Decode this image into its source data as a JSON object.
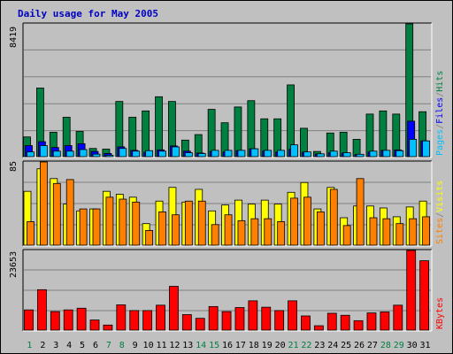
{
  "chart_data": {
    "type": "bar",
    "title": "Daily usage for May 2005",
    "categories": [
      "1",
      "2",
      "3",
      "4",
      "5",
      "6",
      "7",
      "8",
      "9",
      "10",
      "11",
      "12",
      "13",
      "14",
      "15",
      "16",
      "17",
      "18",
      "19",
      "20",
      "21",
      "22",
      "23",
      "24",
      "25",
      "26",
      "27",
      "28",
      "29",
      "30",
      "31"
    ],
    "weekend_days": [
      "1",
      "7",
      "8",
      "14",
      "15",
      "21",
      "22",
      "28",
      "29"
    ],
    "panels": [
      {
        "id": "hits",
        "ymax_label": "8419",
        "ymax": 8419,
        "legend": [
          "Pages",
          "/",
          "Files",
          "/",
          "Hits"
        ],
        "legend_colors": [
          "#00c0ff",
          "#808080",
          "#0000ff",
          "#808080",
          "#008040"
        ],
        "series": [
          {
            "name": "Hits",
            "color": "#008040",
            "values": [
              1250,
              4350,
              1550,
              2500,
              1600,
              520,
              480,
              3500,
              2500,
              2900,
              3800,
              3500,
              1050,
              1400,
              3000,
              2150,
              3150,
              3550,
              2400,
              2400,
              4550,
              1800,
              330,
              1500,
              1550,
              1100,
              2700,
              2900,
              2700,
              8419,
              2850
            ]
          },
          {
            "name": "Files",
            "color": "#0000ff",
            "values": [
              700,
              950,
              580,
              700,
              820,
              330,
              200,
              620,
              400,
              280,
              430,
              680,
              350,
              230,
              330,
              300,
              380,
              500,
              350,
              290,
              470,
              280,
              170,
              250,
              220,
              130,
              290,
              400,
              420,
              2250,
              1000
            ]
          },
          {
            "name": "Pages",
            "color": "#00c0ff",
            "values": [
              300,
              700,
              350,
              350,
              450,
              160,
              90,
              520,
              350,
              380,
              350,
              620,
              250,
              200,
              400,
              400,
              400,
              500,
              400,
              400,
              750,
              300,
              180,
              350,
              250,
              150,
              350,
              400,
              380,
              1100,
              1000
            ]
          }
        ]
      },
      {
        "id": "visits",
        "ymax_label": "85",
        "ymax": 85,
        "legend": [
          "Sites",
          "/",
          "Visits"
        ],
        "legend_colors": [
          "#ff8000",
          "#808080",
          "#ffff00"
        ],
        "series": [
          {
            "name": "Visits",
            "color": "#ffff00",
            "values": [
              55,
              78,
              68,
              42,
              35,
              37,
              55,
              52,
              49,
              22,
              45,
              59,
              44,
              57,
              35,
              41,
              46,
              42,
              46,
              42,
              54,
              64,
              37,
              59,
              28,
              40,
              40,
              38,
              29,
              39,
              45
            ]
          },
          {
            "name": "Sites",
            "color": "#ff8000",
            "values": [
              24,
              85,
              63,
              67,
              37,
              37,
              49,
              47,
              44,
              15,
              34,
              31,
              45,
              45,
              21,
              31,
              25,
              27,
              27,
              24,
              48,
              49,
              34,
              57,
              20,
              68,
              28,
              27,
              22,
              27,
              29
            ]
          }
        ]
      },
      {
        "id": "kbytes",
        "ymax_label": "23653",
        "ymax": 23653,
        "legend": [
          "KBytes"
        ],
        "legend_colors": [
          "#ff0000"
        ],
        "series": [
          {
            "name": "KBytes",
            "color": "#ff0000",
            "values": [
              6000,
              12000,
              5500,
              6000,
              6500,
              3000,
              1500,
              7500,
              5800,
              5800,
              7400,
              13000,
              4600,
              3500,
              7000,
              5500,
              6700,
              8700,
              6800,
              5800,
              8700,
              4200,
              1300,
              5000,
              4400,
              2800,
              5100,
              5400,
              7400,
              23653,
              20600
            ]
          }
        ]
      }
    ]
  }
}
